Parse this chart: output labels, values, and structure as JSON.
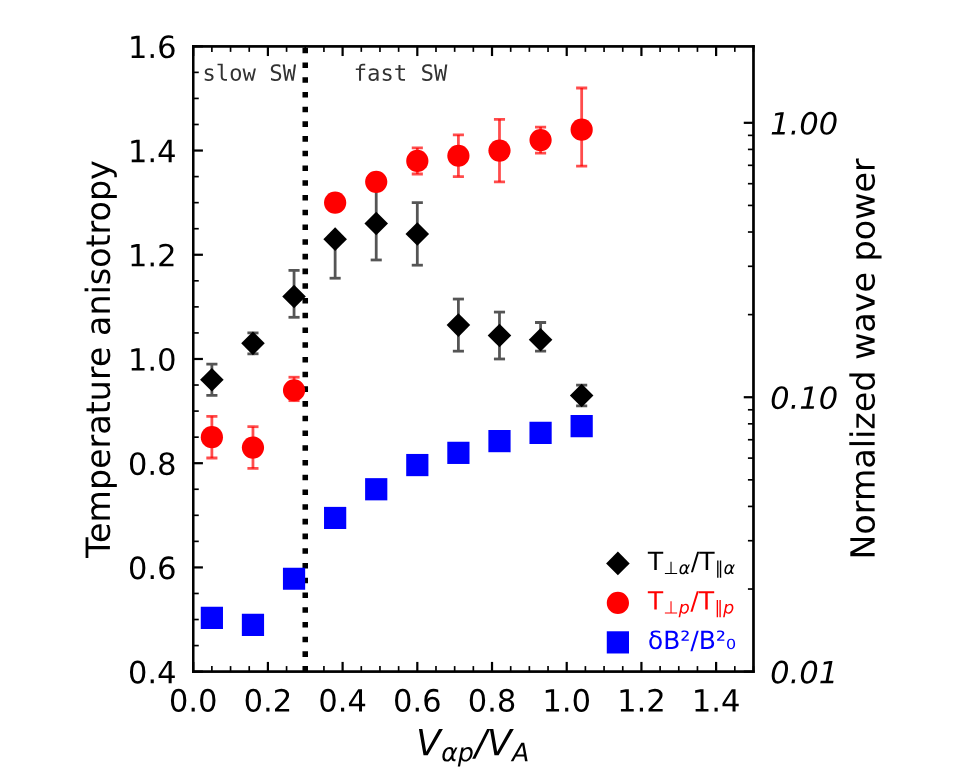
{
  "chart_data": {
    "type": "scatter",
    "xlabel": "V$_{αp}$/V$_{A}$",
    "ylabel": "Temperature anisotropy",
    "y2label": "Normalized wave power",
    "xlim": [
      0,
      1.5
    ],
    "xticks": [
      {
        "value": 0,
        "label": "0.0"
      },
      {
        "value": 0.2,
        "label": "0.2"
      },
      {
        "value": 0.4,
        "label": "0.4"
      },
      {
        "value": 0.6,
        "label": "0.6"
      },
      {
        "value": 0.8,
        "label": "0.8"
      },
      {
        "value": 1.0,
        "label": "1.0"
      },
      {
        "value": 1.2,
        "label": "1.2"
      },
      {
        "value": 1.4,
        "label": "1.4"
      }
    ],
    "ylim": [
      0.4,
      1.6
    ],
    "yticks": [
      {
        "value": 0.4,
        "label": "0.4"
      },
      {
        "value": 0.6,
        "label": "0.6"
      },
      {
        "value": 0.8,
        "label": "0.8"
      },
      {
        "value": 1.0,
        "label": "1.0"
      },
      {
        "value": 1.2,
        "label": "1.2"
      },
      {
        "value": 1.4,
        "label": "1.4"
      },
      {
        "value": 1.6,
        "label": "1.6"
      }
    ],
    "log": "y2",
    "y2lim": [
      0.01,
      1.9
    ],
    "y2ticks": [
      {
        "value": 0.01,
        "label": "0.01"
      },
      {
        "value": 0.1,
        "label": "0.10"
      },
      {
        "value": 1,
        "label": "1.00"
      }
    ],
    "x": [
      0.05,
      0.16,
      0.27,
      0.38,
      0.49,
      0.6,
      0.71,
      0.82,
      0.93,
      1.04
    ],
    "series": [
      {
        "name": "T$_{⊥α}$/T$_{∥α}$",
        "color": "#000000",
        "marker": "diamond",
        "values": [
          0.96,
          1.03,
          1.12,
          1.23,
          1.26,
          1.24,
          1.065,
          1.045,
          1.037,
          0.93
        ],
        "errors": [
          [
            0.93,
            0.99
          ],
          [
            1.01,
            1.05
          ],
          [
            1.08,
            1.17
          ],
          [
            1.155,
            1.23
          ],
          [
            1.19,
            1.33
          ],
          [
            1.18,
            1.3
          ],
          [
            1.015,
            1.115
          ],
          [
            1.0,
            1.09
          ],
          [
            1.015,
            1.07
          ],
          [
            0.91,
            0.95
          ]
        ]
      },
      {
        "name": "T$_{⊥p}$/T$_{∥p}$",
        "color": "#ff0000",
        "marker": "circle",
        "values": [
          0.85,
          0.83,
          0.94,
          1.3,
          1.34,
          1.38,
          1.39,
          1.4,
          1.42,
          1.44
        ],
        "errors": [
          [
            0.81,
            0.89
          ],
          [
            0.79,
            0.87
          ],
          [
            0.92,
            0.965
          ],
          null,
          null,
          [
            1.355,
            1.405
          ],
          [
            1.35,
            1.43
          ],
          [
            1.34,
            1.46
          ],
          [
            1.395,
            1.445
          ],
          [
            1.37,
            1.52
          ]
        ]
      },
      {
        "name": "δB²/B²₀",
        "color": "#0000ff",
        "marker": "square",
        "axis": "y2",
        "values": [
          0.0157,
          0.0148,
          0.0218,
          0.0363,
          0.0462,
          0.0566,
          0.0627,
          0.0692,
          0.0741,
          0.0785
        ]
      }
    ],
    "ref_lines": [
      {
        "axis": "x",
        "value": 0.3,
        "line_style": "dotted",
        "color": "#000000"
      }
    ],
    "annotations": [
      "slow SW",
      "fast SW"
    ],
    "legend": "bottom right",
    "grid": false
  }
}
